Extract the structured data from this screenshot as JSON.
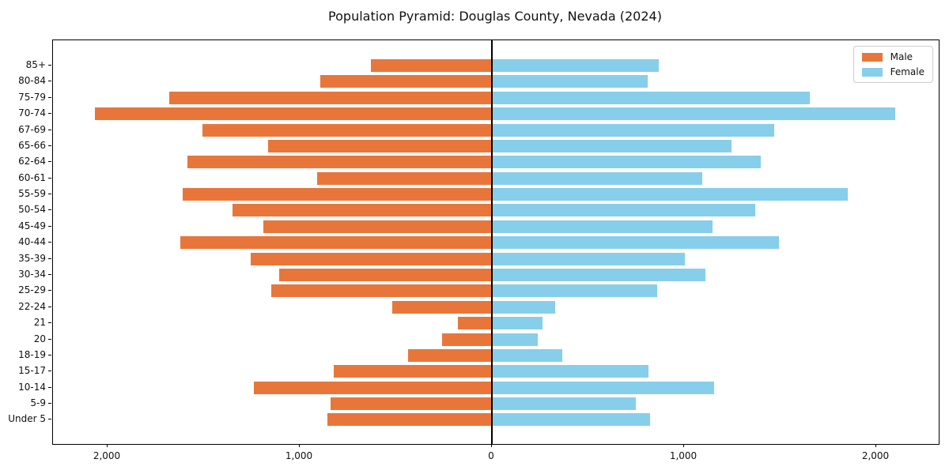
{
  "title": "Population Pyramid: Douglas County, Nevada (2024)",
  "legend": {
    "entries": [
      {
        "label": "Male",
        "color": "#E8763B"
      },
      {
        "label": "Female",
        "color": "#87CEEB"
      }
    ]
  },
  "x_axis": {
    "tick_labels": [
      "2,000",
      "1,000",
      "0",
      "1,000",
      "2,000"
    ],
    "tick_values": [
      -2000,
      -1000,
      0,
      1000,
      2000
    ]
  },
  "colors": {
    "male": "#E8763B",
    "female": "#87CEEB",
    "axis": "#000000",
    "zero_line": "#000000"
  },
  "chart_data": {
    "type": "bar",
    "orientation": "horizontal",
    "title": "Population Pyramid: Douglas County, Nevada (2024)",
    "categories": [
      "85+",
      "80-84",
      "75-79",
      "70-74",
      "67-69",
      "65-66",
      "62-64",
      "60-61",
      "55-59",
      "50-54",
      "45-49",
      "40-44",
      "35-39",
      "30-34",
      "25-29",
      "22-24",
      "21",
      "20",
      "18-19",
      "15-17",
      "10-14",
      "5-9",
      "Under 5"
    ],
    "series": [
      {
        "name": "Male",
        "side": "left",
        "color": "#E8763B",
        "values": [
          630,
          895,
          1680,
          2065,
          1505,
          1165,
          1585,
          910,
          1610,
          1350,
          1190,
          1620,
          1255,
          1105,
          1150,
          520,
          175,
          260,
          435,
          825,
          1240,
          840,
          855
        ]
      },
      {
        "name": "Female",
        "side": "right",
        "color": "#87CEEB",
        "values": [
          870,
          810,
          1655,
          2100,
          1470,
          1245,
          1400,
          1095,
          1850,
          1370,
          1150,
          1495,
          1005,
          1110,
          860,
          330,
          265,
          240,
          365,
          815,
          1155,
          750,
          825
        ]
      }
    ],
    "xlim": [
      -2300,
      2300
    ],
    "x_tick_values_abs": [
      2000,
      1000,
      0,
      1000,
      2000
    ],
    "grid": false,
    "zero_line": true,
    "legend_position": "upper right"
  }
}
